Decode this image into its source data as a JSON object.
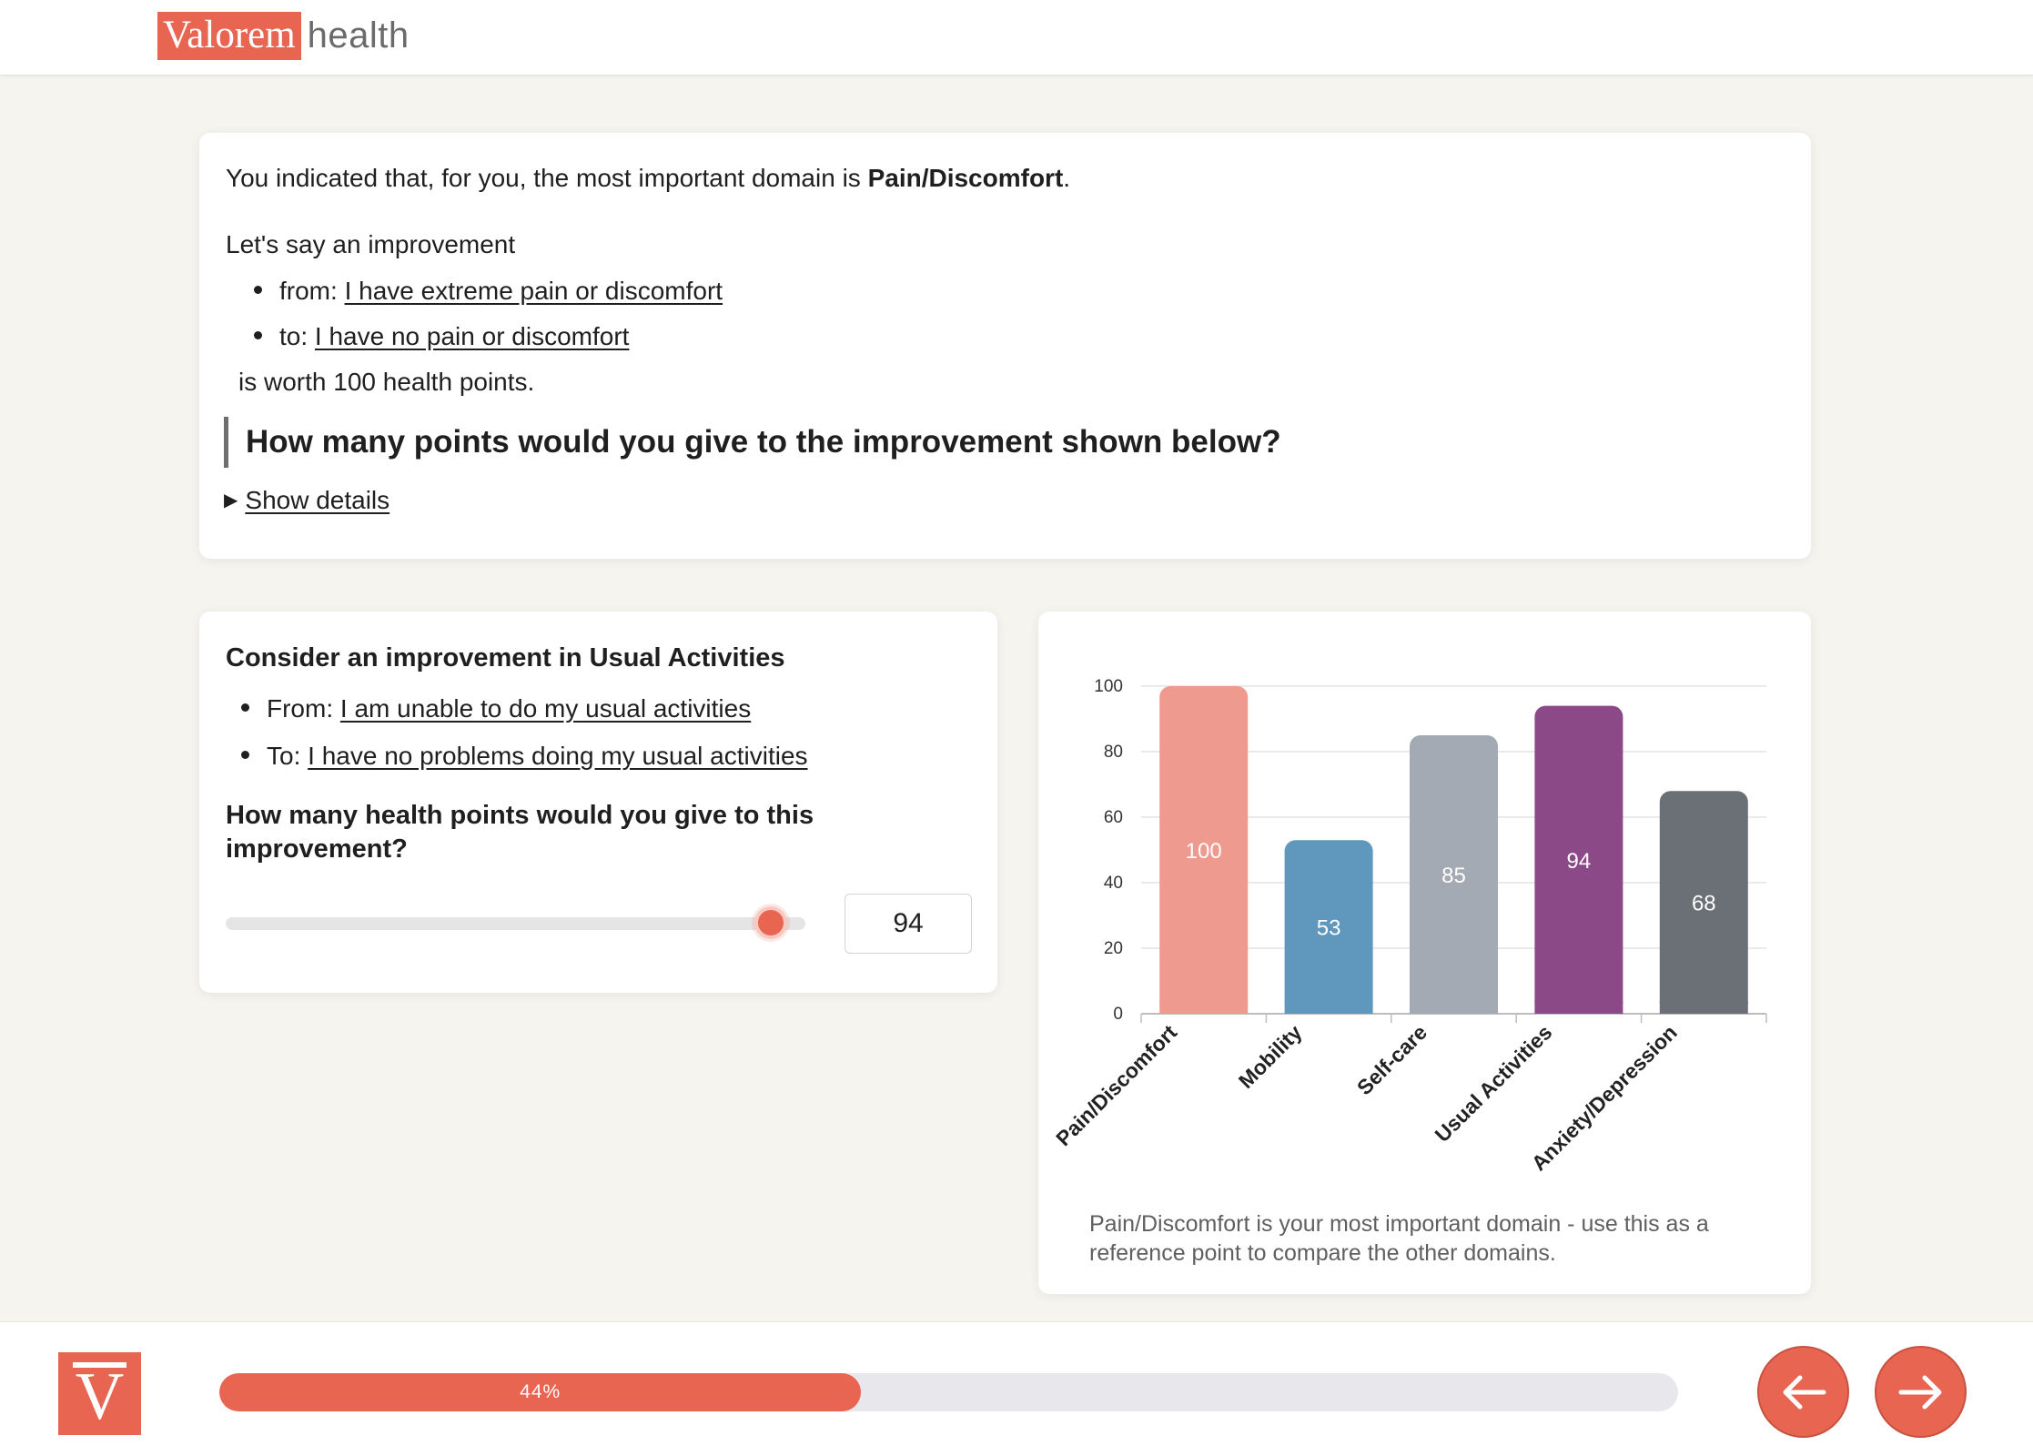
{
  "header": {
    "brand_boxed": "Valorem",
    "brand_suffix": "health"
  },
  "intro": {
    "most_important_prefix": "You indicated that, for you, the most important domain is ",
    "most_important_domain": "Pain/Discomfort",
    "most_important_suffix": ".",
    "lets_say": "Let's say an improvement",
    "from_label": "from: ",
    "from_value": "I have extreme pain or discomfort",
    "to_label": "to: ",
    "to_value": "I have no pain or discomfort",
    "worth": "is worth 100 health points.",
    "question": "How many points would you give to the improvement shown below?",
    "show_details": "Show details"
  },
  "improvement": {
    "title": "Consider an improvement in Usual Activities",
    "from_label": "From: ",
    "from_value": "I am unable to do my usual activities",
    "to_label": "To: ",
    "to_value": "I have no problems doing my usual activities",
    "question": "How many health points would you give to this improvement?",
    "slider_value": 94,
    "slider_min": 0,
    "slider_max": 100,
    "input_value": "94"
  },
  "chart_data": {
    "type": "bar",
    "categories": [
      "Pain/Discomfort",
      "Mobility",
      "Self-care",
      "Usual Activities",
      "Anxiety/Depression"
    ],
    "values": [
      100,
      53,
      85,
      94,
      68
    ],
    "colors": [
      "#ee9a8f",
      "#5f97bd",
      "#a3aab3",
      "#8b4a87",
      "#6b7077"
    ],
    "yticks": [
      "0",
      "20",
      "40",
      "60",
      "80",
      "100"
    ],
    "ylim": [
      0,
      100
    ],
    "grid": true,
    "note": "Pain/Discomfort is your most important domain - use this as a reference point to compare the other domains."
  },
  "footer": {
    "logo_letter": "V",
    "progress_percent": 44,
    "progress_label": "44%",
    "back_icon": "arrow-left-icon",
    "next_icon": "arrow-right-icon",
    "accent": "#e86552"
  }
}
